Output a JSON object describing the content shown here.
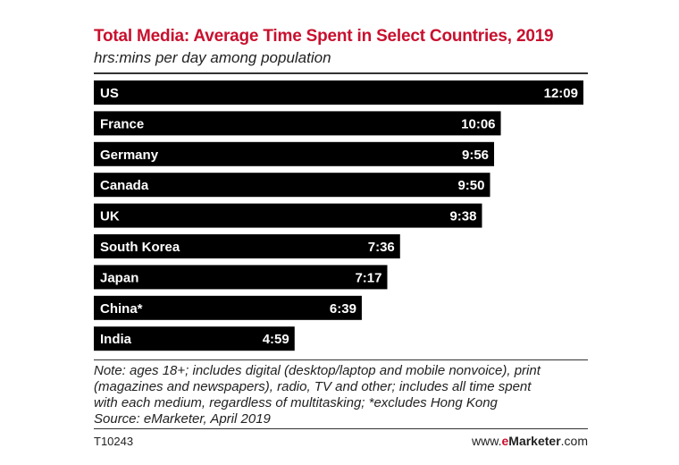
{
  "chart_data": {
    "type": "bar",
    "orientation": "horizontal",
    "title": "Total Media: Average Time Spent in Select Countries, 2019",
    "subtitle": "hrs:mins per day among population",
    "categories": [
      "US",
      "France",
      "Germany",
      "Canada",
      "UK",
      "South Korea",
      "Japan",
      "China*",
      "India"
    ],
    "values": [
      729,
      606,
      596,
      590,
      578,
      456,
      437,
      399,
      299
    ],
    "value_labels": [
      "12:09",
      "10:06",
      "9:56",
      "9:50",
      "9:38",
      "7:36",
      "7:17",
      "6:39",
      "4:59"
    ],
    "bar_color": "#000000",
    "label_color": "#ffffff"
  },
  "note_lines": [
    "Note: ages 18+; includes digital (desktop/laptop and mobile nonvoice), print",
    "(magazines and newspapers), radio, TV and other; includes all time spent",
    "with each medium, regardless of multitasking; *excludes Hong Kong",
    "Source: eMarketer, April 2019"
  ],
  "footer": {
    "chart_id": "T10243",
    "brand_prefix": "www.",
    "brand_e": "e",
    "brand_name": "Marketer",
    "brand_suffix": ".com"
  },
  "colors": {
    "title": "#c8102e",
    "brand_accent": "#c8102e"
  }
}
